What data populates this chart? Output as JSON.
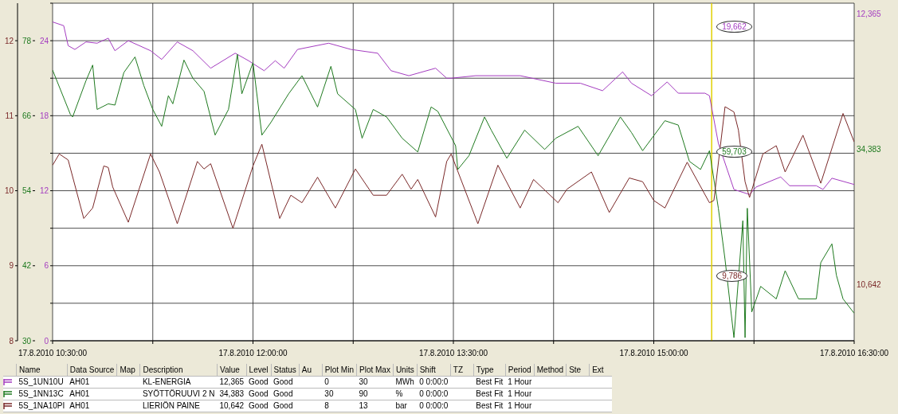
{
  "chart_data": {
    "type": "line",
    "grid": true,
    "marker": "none",
    "line_style": "solid",
    "xlim": [
      "2010-08-17T10:30",
      "2010-08-17T16:30"
    ],
    "xticks": [
      {
        "value": "2010-08-17T10:30",
        "label": "17.8.2010  10:30:00"
      },
      {
        "value": "2010-08-17T11:15",
        "label": null
      },
      {
        "value": "2010-08-17T12:00",
        "label": "17.8.2010  12:00:00"
      },
      {
        "value": "2010-08-17T12:45",
        "label": null
      },
      {
        "value": "2010-08-17T13:30",
        "label": "17.8.2010  13:30:00"
      },
      {
        "value": "2010-08-17T14:15",
        "label": null
      },
      {
        "value": "2010-08-17T15:00",
        "label": "17.8.2010  15:00:00"
      },
      {
        "value": "2010-08-17T15:45",
        "label": null
      },
      {
        "value": "2010-08-17T16:30",
        "label": "17.8.2010  16:30:00"
      }
    ],
    "ylim": [
      0,
      27
    ],
    "yticks": [
      0,
      {
        "value": 3,
        "label": null
      },
      6,
      {
        "value": 9,
        "label": null
      },
      12,
      {
        "value": 15,
        "label": null
      },
      18,
      {
        "value": 21,
        "label": null
      },
      24,
      {
        "value": 27,
        "label": null
      }
    ],
    "y2lim": [
      30,
      84
    ],
    "y2ticks": [
      30,
      42,
      54,
      66,
      78
    ],
    "y3lim": [
      8,
      12.5
    ],
    "y3ticks": [
      8,
      9,
      10,
      11,
      12
    ],
    "ref_lines": [
      {
        "axis": "x",
        "value": "2010-08-17T15:26",
        "color": "#e0d000"
      }
    ],
    "series": [
      {
        "color": "#a43cc0",
        "x": [
          "2010-08-17T10:30",
          "2010-08-17T10:35",
          "2010-08-17T10:37",
          "2010-08-17T10:40",
          "2010-08-17T10:45",
          "2010-08-17T10:50",
          "2010-08-17T10:55",
          "2010-08-17T10:58",
          "2010-08-17T11:04",
          "2010-08-17T11:14",
          "2010-08-17T11:19",
          "2010-08-17T11:26",
          "2010-08-17T11:33",
          "2010-08-17T11:41",
          "2010-08-17T11:52",
          "2010-08-17T11:58",
          "2010-08-17T12:05",
          "2010-08-17T12:10",
          "2010-08-17T12:14",
          "2010-08-17T12:20",
          "2010-08-17T12:34",
          "2010-08-17T12:44",
          "2010-08-17T12:56",
          "2010-08-17T13:02",
          "2010-08-17T13:10",
          "2010-08-17T13:22",
          "2010-08-17T13:27",
          "2010-08-17T13:29",
          "2010-08-17T13:40",
          "2010-08-17T14:00",
          "2010-08-17T14:16",
          "2010-08-17T14:27",
          "2010-08-17T14:37",
          "2010-08-17T14:46",
          "2010-08-17T14:50",
          "2010-08-17T14:59",
          "2010-08-17T15:06",
          "2010-08-17T15:11",
          "2010-08-17T15:23",
          "2010-08-17T15:25",
          "2010-08-17T15:29",
          "2010-08-17T15:36",
          "2010-08-17T15:43",
          "2010-08-17T15:46",
          "2010-08-17T15:57",
          "2010-08-17T16:01",
          "2010-08-17T16:13",
          "2010-08-17T16:16",
          "2010-08-17T16:20",
          "2010-08-17T16:30"
        ],
        "values": [
          25.5,
          25.2,
          23.6,
          23.3,
          23.9,
          23.8,
          24.2,
          23.2,
          24.0,
          23.2,
          22.5,
          23.9,
          23.2,
          21.8,
          23.0,
          22.4,
          21.6,
          22.4,
          21.8,
          23.3,
          23.8,
          23.3,
          23.0,
          21.6,
          21.2,
          21.8,
          21.0,
          21.0,
          21.2,
          21.2,
          20.6,
          20.6,
          20.0,
          21.5,
          20.6,
          19.6,
          20.7,
          19.8,
          19.8,
          19.6,
          15.8,
          12.1,
          11.7,
          12.3,
          13.1,
          12.4,
          12.4,
          12.1,
          13.0,
          12.5
        ]
      },
      {
        "color": "#1f7a1f",
        "axis": "y2",
        "x": [
          "2010-08-17T10:30",
          "2010-08-17T10:38",
          "2010-08-17T10:39",
          "2010-08-17T10:45",
          "2010-08-17T10:48",
          "2010-08-17T10:50",
          "2010-08-17T10:55",
          "2010-08-17T10:58",
          "2010-08-17T11:02",
          "2010-08-17T11:07",
          "2010-08-17T11:11",
          "2010-08-17T11:15",
          "2010-08-17T11:19",
          "2010-08-17T11:22",
          "2010-08-17T11:24",
          "2010-08-17T11:29",
          "2010-08-17T11:33",
          "2010-08-17T11:38",
          "2010-08-17T11:43",
          "2010-08-17T11:49",
          "2010-08-17T11:53",
          "2010-08-17T11:55",
          "2010-08-17T12:00",
          "2010-08-17T12:04",
          "2010-08-17T12:08",
          "2010-08-17T12:16",
          "2010-08-17T12:22",
          "2010-08-17T12:29",
          "2010-08-17T12:35",
          "2010-08-17T12:38",
          "2010-08-17T12:46",
          "2010-08-17T12:49",
          "2010-08-17T12:54",
          "2010-08-17T13:00",
          "2010-08-17T13:07",
          "2010-08-17T13:14",
          "2010-08-17T13:20",
          "2010-08-17T13:23",
          "2010-08-17T13:31",
          "2010-08-17T13:32",
          "2010-08-17T13:37",
          "2010-08-17T13:44",
          "2010-08-17T13:47",
          "2010-08-17T13:54",
          "2010-08-17T14:02",
          "2010-08-17T14:11",
          "2010-08-17T14:16",
          "2010-08-17T14:26",
          "2010-08-17T14:35",
          "2010-08-17T14:45",
          "2010-08-17T14:50",
          "2010-08-17T14:55",
          "2010-08-17T15:05",
          "2010-08-17T15:11",
          "2010-08-17T15:16",
          "2010-08-17T15:21",
          "2010-08-17T15:25",
          "2010-08-17T15:29",
          "2010-08-17T15:32",
          "2010-08-17T15:36",
          "2010-08-17T15:40",
          "2010-08-17T15:41",
          "2010-08-17T15:42",
          "2010-08-17T15:44",
          "2010-08-17T15:48",
          "2010-08-17T15:55",
          "2010-08-17T15:59",
          "2010-08-17T16:05",
          "2010-08-17T16:13",
          "2010-08-17T16:15",
          "2010-08-17T16:20",
          "2010-08-17T16:22",
          "2010-08-17T16:25",
          "2010-08-17T16:30"
        ],
        "values": [
          73.3,
          66.2,
          65.8,
          71.6,
          74.1,
          67.0,
          67.9,
          67.7,
          72.9,
          75.4,
          70.8,
          67.0,
          64.3,
          69.2,
          67.9,
          74.9,
          72.0,
          69.9,
          62.9,
          67.0,
          75.8,
          69.5,
          74.5,
          62.9,
          64.9,
          69.5,
          72.4,
          67.4,
          73.9,
          69.5,
          67.0,
          62.4,
          67.0,
          65.8,
          62.4,
          60.2,
          67.4,
          66.7,
          61.2,
          57.4,
          59.6,
          65.8,
          63.7,
          59.2,
          63.7,
          60.6,
          62.4,
          64.3,
          59.6,
          65.8,
          63.3,
          60.4,
          65.2,
          64.5,
          58.7,
          57.4,
          60.4,
          51.2,
          43.0,
          30.5,
          49.2,
          30.5,
          51.2,
          34.6,
          38.7,
          36.7,
          41.2,
          36.7,
          36.7,
          42.5,
          45.5,
          40.5,
          36.7,
          34.4
        ]
      },
      {
        "color": "#7a2828",
        "axis": "y3",
        "x": [
          "2010-08-17T10:30",
          "2010-08-17T10:33",
          "2010-08-17T10:37",
          "2010-08-17T10:44",
          "2010-08-17T10:48",
          "2010-08-17T10:53",
          "2010-08-17T10:55",
          "2010-08-17T10:57",
          "2010-08-17T11:04",
          "2010-08-17T11:14",
          "2010-08-17T11:18",
          "2010-08-17T11:26",
          "2010-08-17T11:35",
          "2010-08-17T11:38",
          "2010-08-17T11:41",
          "2010-08-17T11:51",
          "2010-08-17T12:00",
          "2010-08-17T12:04",
          "2010-08-17T12:12",
          "2010-08-17T12:17",
          "2010-08-17T12:22",
          "2010-08-17T12:29",
          "2010-08-17T12:37",
          "2010-08-17T12:46",
          "2010-08-17T12:54",
          "2010-08-17T13:00",
          "2010-08-17T13:07",
          "2010-08-17T13:11",
          "2010-08-17T13:14",
          "2010-08-17T13:22",
          "2010-08-17T13:27",
          "2010-08-17T13:29",
          "2010-08-17T13:41",
          "2010-08-17T13:50",
          "2010-08-17T14:00",
          "2010-08-17T14:06",
          "2010-08-17T14:17",
          "2010-08-17T14:21",
          "2010-08-17T14:32",
          "2010-08-17T14:40",
          "2010-08-17T14:49",
          "2010-08-17T14:55",
          "2010-08-17T15:00",
          "2010-08-17T15:05",
          "2010-08-17T15:15",
          "2010-08-17T15:25",
          "2010-08-17T15:27",
          "2010-08-17T15:32",
          "2010-08-17T15:36",
          "2010-08-17T15:38",
          "2010-08-17T15:41",
          "2010-08-17T15:43",
          "2010-08-17T15:49",
          "2010-08-17T15:55",
          "2010-08-17T15:59",
          "2010-08-17T16:07",
          "2010-08-17T16:15",
          "2010-08-17T16:25",
          "2010-08-17T16:30"
        ],
        "values": [
          10.34,
          10.49,
          10.41,
          9.63,
          9.77,
          10.33,
          10.31,
          10.05,
          9.58,
          10.49,
          10.25,
          9.56,
          10.39,
          10.29,
          10.36,
          9.5,
          10.33,
          10.62,
          9.63,
          9.94,
          9.84,
          10.18,
          9.77,
          10.29,
          9.94,
          9.94,
          10.22,
          10.02,
          10.15,
          9.65,
          10.39,
          10.49,
          9.56,
          10.34,
          9.77,
          10.15,
          9.84,
          10.02,
          10.25,
          9.71,
          10.17,
          10.12,
          9.87,
          9.77,
          10.38,
          9.84,
          9.87,
          11.12,
          11.05,
          10.81,
          10.12,
          9.91,
          10.49,
          10.6,
          10.25,
          10.74,
          10.1,
          11.03,
          10.65
        ]
      }
    ],
    "annotations": [
      "19,662",
      "59,703",
      "9,786",
      "12,365",
      "34,383",
      "10,642",
      "Name",
      "Data Source",
      "Map",
      "Description",
      "Value",
      "Level",
      "Status",
      "Au",
      "Plot Min",
      "Plot Max",
      "Units",
      "Shift",
      "TZ",
      "Type",
      "Period",
      "Method",
      "Ste",
      "Ext",
      "5S_1UN10U",
      "AH01",
      null,
      "KL-ENERGIA",
      "12,365",
      "Good",
      "Good",
      null,
      "0",
      "30",
      "MWh",
      "0 0:00:0",
      null,
      "Best Fit",
      "1 Hour",
      null,
      null,
      null,
      "5S_1NN13C",
      "AH01",
      null,
      "SYÖTTÖRUUVI 2 N",
      "34,383",
      "Good",
      "Good",
      null,
      "30",
      "90",
      "%",
      "0 0:00:0",
      null,
      "Best Fit",
      "1 Hour",
      null,
      null,
      null,
      "5S_1NA10PI",
      "AH01",
      null,
      "LIERIÖN PAINE",
      "10,642",
      "Good",
      "Good",
      null,
      "8",
      "13",
      "bar",
      "0 0:00:0",
      null,
      "Best Fit",
      "1 Hour",
      null,
      null,
      null
    ]
  }
}
